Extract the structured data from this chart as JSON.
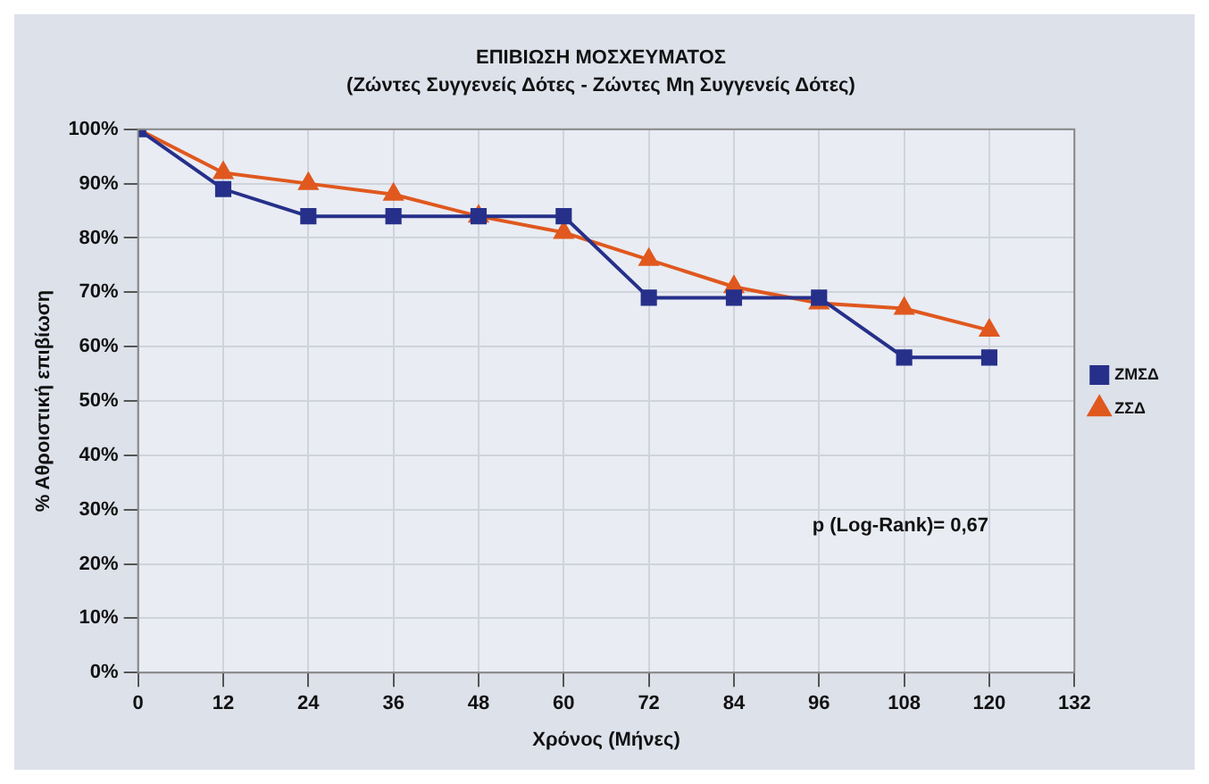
{
  "chart_data": {
    "type": "line",
    "title": "ΕΠΙΒΙΩΣΗ ΜΟΣΧΕΥΜΑΤΟΣ",
    "subtitle": "(Ζώντες Συγγενείς Δότες - Ζώντες Μη Συγγενείς Δότες)",
    "xlabel": "Χρόνος (Μήνες)",
    "ylabel": "% Αθροιστική επιβίωση",
    "x": [
      0,
      12,
      24,
      36,
      48,
      60,
      72,
      84,
      96,
      108,
      120
    ],
    "series": [
      {
        "name": "ΖΣΔ",
        "color": "#e0581e",
        "marker": "triangle",
        "values": [
          100,
          92,
          90,
          88,
          84,
          81,
          76,
          71,
          68,
          67,
          63
        ]
      },
      {
        "name": "ΖΜΣΔ",
        "color": "#26308a",
        "marker": "square",
        "values": [
          100,
          89,
          84,
          84,
          84,
          84,
          69,
          69,
          69,
          58,
          58
        ]
      }
    ],
    "xlim": [
      0,
      132
    ],
    "xticks": [
      0,
      12,
      24,
      36,
      48,
      60,
      72,
      84,
      96,
      108,
      120,
      132
    ],
    "ylim": [
      0,
      100
    ],
    "yticks": [
      {
        "value": 0,
        "label": "0%"
      },
      {
        "value": 10,
        "label": "10%"
      },
      {
        "value": 20,
        "label": "20%"
      },
      {
        "value": 30,
        "label": "30%"
      },
      {
        "value": 40,
        "label": "40%"
      },
      {
        "value": 50,
        "label": "50%"
      },
      {
        "value": 60,
        "label": "60%"
      },
      {
        "value": 70,
        "label": "70%"
      },
      {
        "value": 80,
        "label": "80%"
      },
      {
        "value": 90,
        "label": "90%"
      },
      {
        "value": 100,
        "label": "100%"
      }
    ],
    "grid": true,
    "legend": "right",
    "line_style": "solid",
    "annotations": [
      "p (Log-Rank)= 0,67"
    ]
  }
}
